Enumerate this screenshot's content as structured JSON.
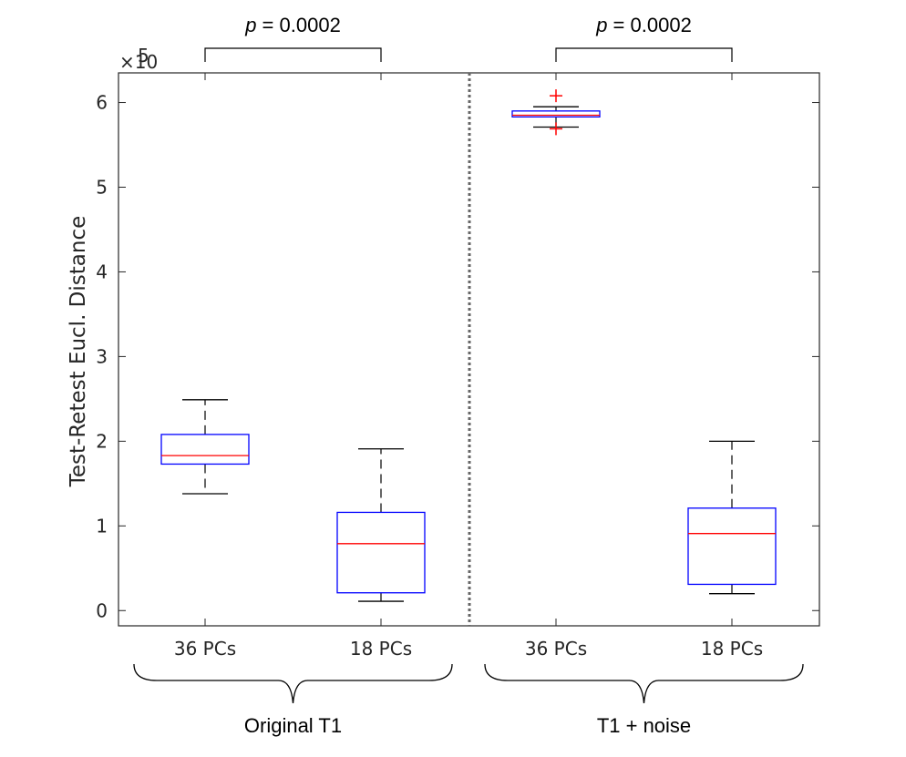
{
  "chart_data": {
    "type": "box",
    "ylabel": "Test-Retest Eucl. Distance",
    "y_exponent_label": "×10",
    "y_exponent_power": "5",
    "ylim": [
      -0.18,
      6.35
    ],
    "yticks": [
      0,
      1,
      2,
      3,
      4,
      5,
      6
    ],
    "grid": false,
    "colors": {
      "box": "#0000ff",
      "median": "#ff0000",
      "whisker": "#000000",
      "outlier": "#ff0000",
      "divider": "#666666"
    },
    "categories": [
      "36 PCs",
      "18 PCs",
      "36 PCs",
      "18 PCs"
    ],
    "groups": [
      {
        "label": "Original T1",
        "categories": [
          0,
          1
        ],
        "annotation": "p = 0.0002"
      },
      {
        "label": "T1 + noise",
        "categories": [
          2,
          3
        ],
        "annotation": "p = 0.0002"
      }
    ],
    "boxes": [
      {
        "category": "36 PCs",
        "group": "Original T1",
        "whisker_low": 1.38,
        "q1": 1.73,
        "median": 1.83,
        "q3": 2.08,
        "whisker_high": 2.49,
        "outliers": []
      },
      {
        "category": "18 PCs",
        "group": "Original T1",
        "whisker_low": 0.11,
        "q1": 0.21,
        "median": 0.79,
        "q3": 1.16,
        "whisker_high": 1.91,
        "outliers": []
      },
      {
        "category": "36 PCs",
        "group": "T1 + noise",
        "whisker_low": 5.71,
        "q1": 5.83,
        "median": 5.85,
        "q3": 5.9,
        "whisker_high": 5.95,
        "outliers": [
          5.69,
          6.08
        ]
      },
      {
        "category": "18 PCs",
        "group": "T1 + noise",
        "whisker_low": 0.2,
        "q1": 0.31,
        "median": 0.91,
        "q3": 1.21,
        "whisker_high": 2.0,
        "outliers": []
      }
    ]
  }
}
